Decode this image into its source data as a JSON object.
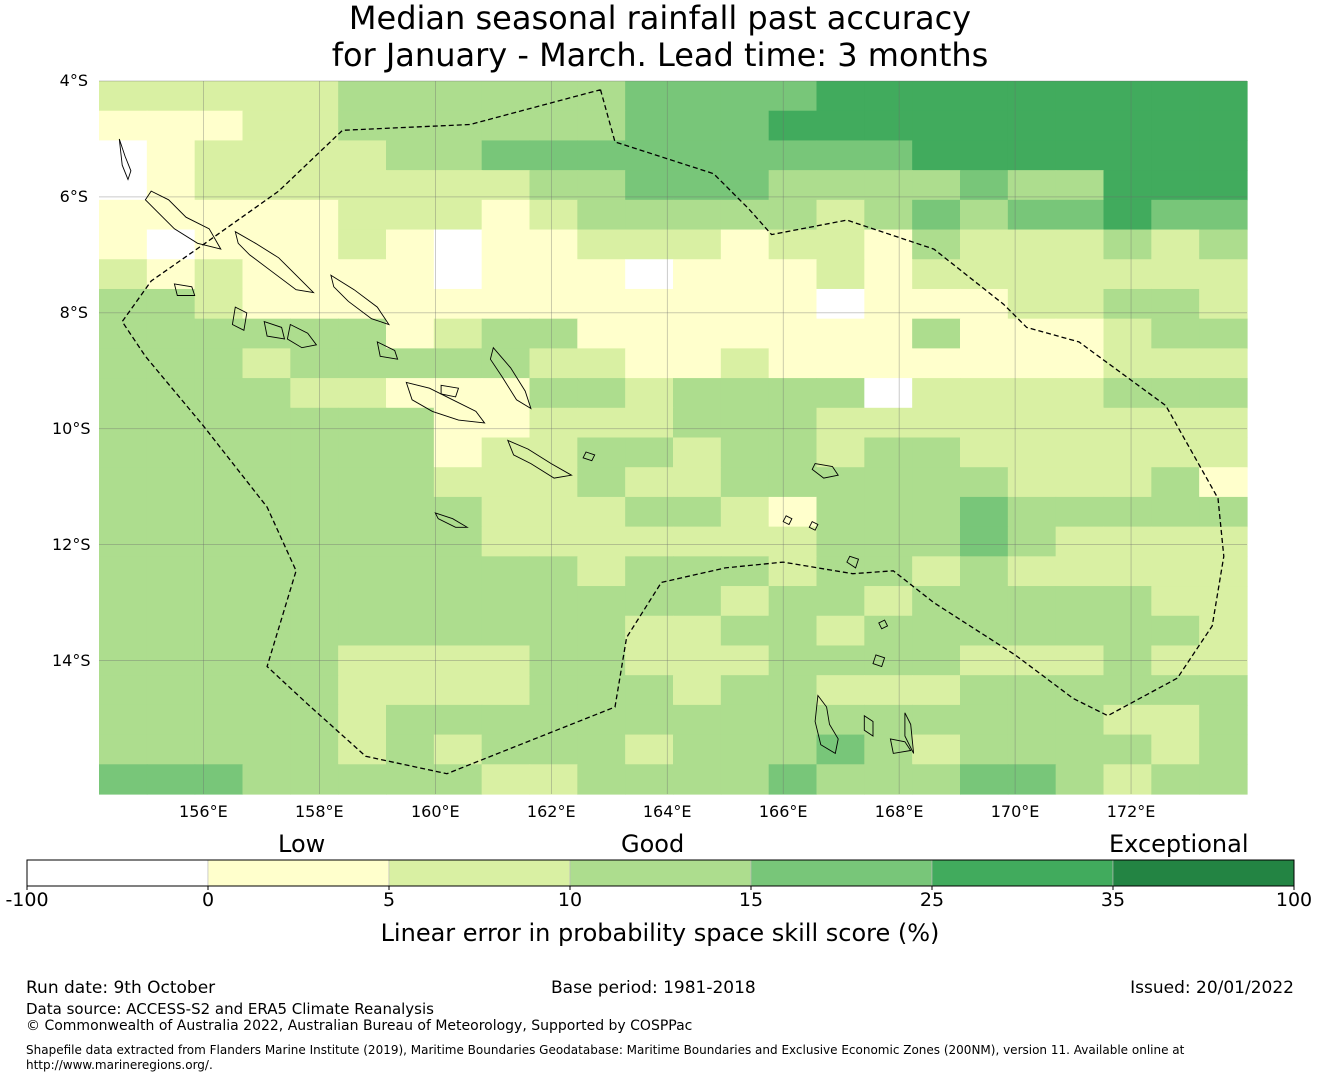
{
  "title": {
    "line1": "Median seasonal rainfall past accuracy",
    "line2": "for January - March. Lead time: 3 months"
  },
  "map": {
    "lon_min": 154.2,
    "lon_max": 174.0,
    "lat_top": -4.0,
    "lat_bottom": -16.3,
    "cell_deg": 0.833,
    "lat_ticks": [
      {
        "value": -4,
        "label": "4°S"
      },
      {
        "value": -6,
        "label": "6°S"
      },
      {
        "value": -8,
        "label": "8°S"
      },
      {
        "value": -10,
        "label": "10°S"
      },
      {
        "value": -12,
        "label": "12°S"
      },
      {
        "value": -14,
        "label": "14°S"
      }
    ],
    "lon_ticks": [
      {
        "value": 156,
        "label": "156°E"
      },
      {
        "value": 158,
        "label": "158°E"
      },
      {
        "value": 160,
        "label": "160°E"
      },
      {
        "value": 162,
        "label": "162°E"
      },
      {
        "value": 164,
        "label": "164°E"
      },
      {
        "value": 166,
        "label": "166°E"
      },
      {
        "value": 168,
        "label": "168°E"
      },
      {
        "value": 170,
        "label": "170°E"
      },
      {
        "value": 172,
        "label": "172°E"
      }
    ],
    "grid_category_rows": [
      "222223333334444555555555",
      "111223333334445555555555",
      "012222334444444445555555",
      "012222222334443333433555",
      "111112221233333234344544",
      "101112101122212213222323",
      "212111101110111212222222",
      "332111111111111011122332",
      "333333123311111113111233",
      "333233333221121111111222",
      "333322111332333302222333",
      "333333311222333222222222",
      "333333312233233233222222",
      "333333322232233333322231",
      "333333332223321333433333",
      "333333332222222333432222",
      "333333333323332332322222",
      "333333333333323323333322",
      "333333333332233233333332",
      "333332222332223333222322",
      "333332222333233222333333",
      "333332333333333333333223",
      "333332323332333432333323",
      "444333332233334333443233"
    ],
    "eez_boundary": [
      [
        162.85,
        -4.15
      ],
      [
        163.1,
        -5.05
      ],
      [
        164.8,
        -5.6
      ],
      [
        165.4,
        -6.2
      ],
      [
        165.8,
        -6.65
      ],
      [
        167.1,
        -6.4
      ],
      [
        168.6,
        -6.9
      ],
      [
        169.8,
        -7.85
      ],
      [
        170.2,
        -8.25
      ],
      [
        171.1,
        -8.5
      ],
      [
        172.6,
        -9.6
      ],
      [
        173.5,
        -11.2
      ],
      [
        173.6,
        -12.2
      ],
      [
        173.4,
        -13.4
      ],
      [
        172.8,
        -14.3
      ],
      [
        171.6,
        -14.95
      ],
      [
        171.0,
        -14.65
      ],
      [
        170.0,
        -13.9
      ],
      [
        168.6,
        -13.0
      ],
      [
        167.9,
        -12.45
      ],
      [
        167.2,
        -12.5
      ],
      [
        166.0,
        -12.3
      ],
      [
        165.0,
        -12.4
      ],
      [
        163.9,
        -12.65
      ],
      [
        163.3,
        -13.6
      ],
      [
        163.1,
        -14.8
      ],
      [
        160.2,
        -15.95
      ],
      [
        158.8,
        -15.65
      ],
      [
        157.8,
        -14.75
      ],
      [
        157.1,
        -14.1
      ],
      [
        157.6,
        -12.45
      ],
      [
        157.1,
        -11.35
      ],
      [
        156.0,
        -9.95
      ],
      [
        155.0,
        -8.75
      ],
      [
        154.6,
        -8.15
      ],
      [
        155.1,
        -7.45
      ],
      [
        156.1,
        -6.75
      ],
      [
        157.3,
        -5.9
      ],
      [
        158.4,
        -4.85
      ],
      [
        160.6,
        -4.75
      ],
      [
        162.85,
        -4.15
      ]
    ]
  },
  "legend": {
    "category_colors": [
      "#ffffff",
      "#ffffcc",
      "#d9f0a3",
      "#addd8e",
      "#78c679",
      "#41ab5d",
      "#238443"
    ],
    "ticks": [
      "-100",
      "0",
      "5",
      "10",
      "15",
      "25",
      "35",
      "100"
    ],
    "category_labels": {
      "low": "Low",
      "good": "Good",
      "exceptional": "Exceptional"
    },
    "title": "Linear error in probability space skill score (%)"
  },
  "footer": {
    "run_date": "Run date: 9th October",
    "base_period": "Base period: 1981-2018",
    "issued": "Issued: 20/01/2022",
    "data_source": "Data source: ACCESS-S2 and ERA5 Climate Reanalysis",
    "copyright": "© Commonwealth of Australia 2022, Australian Bureau of Meteorology, Supported by COSPPac",
    "shapefile_line1": "Shapefile data extracted from Flanders Marine Institute (2019), Maritime Boundaries Geodatabase: Maritime Boundaries and Exclusive Economic Zones (200NM), version 11. Available online at",
    "shapefile_line2": "http://www.marineregions.org/."
  }
}
